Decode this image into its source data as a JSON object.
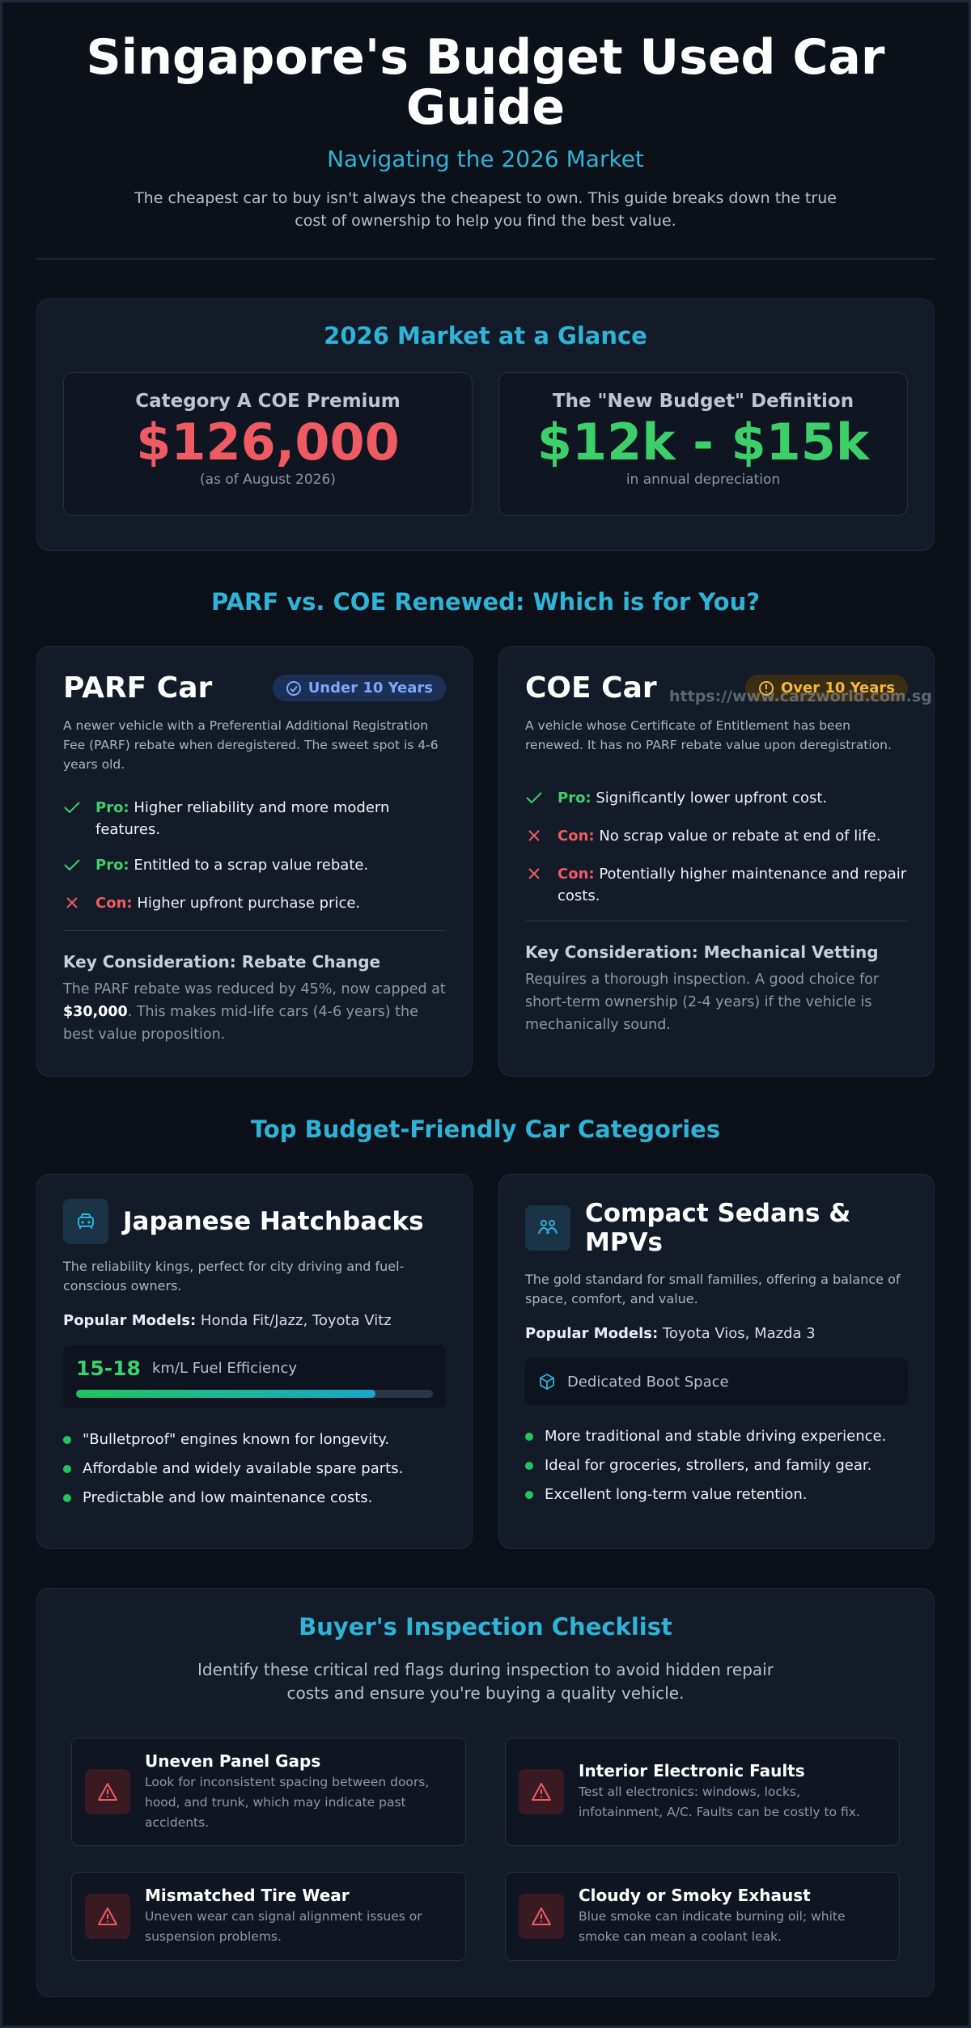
{
  "header": {
    "title": "Singapore's Budget Used Car Guide",
    "subtitle": "Navigating the 2026 Market",
    "intro": "The cheapest car to buy isn't always the cheapest to own. This guide breaks down the true cost of ownership to help you find the best value."
  },
  "glance": {
    "title": "2026 Market at a Glance",
    "cards": [
      {
        "label": "Category A COE Premium",
        "value": "$126,000",
        "note": "(as of August 2026)",
        "color": "#ef5b62"
      },
      {
        "label": "The \"New Budget\" Definition",
        "value": "$12k - $15k",
        "note": "in annual depreciation",
        "color": "#3ccf6a"
      }
    ]
  },
  "compare": {
    "title": "PARF vs. COE Renewed: Which is for You?",
    "parf": {
      "title": "PARF Car",
      "badge": "Under 10 Years",
      "desc": "A newer vehicle with a Preferential Additional Registration Fee (PARF) rebate when deregistered. The sweet spot is 4-6 years old.",
      "items": [
        {
          "type": "Pro:",
          "text": "Higher reliability and more modern features."
        },
        {
          "type": "Pro:",
          "text": "Entitled to a scrap value rebate."
        },
        {
          "type": "Con:",
          "text": "Higher upfront purchase price."
        }
      ],
      "kc_title": "Key Consideration: Rebate Change",
      "kc_before": "The PARF rebate was reduced by 45%, now capped at ",
      "kc_bold": "$30,000",
      "kc_after": ". This makes mid-life cars (4-6 years) the best value proposition."
    },
    "coe": {
      "title": "COE Car",
      "badge": "Over 10 Years",
      "watermark": "https://www.carzworld.com.sg",
      "desc": "A vehicle whose Certificate of Entitlement has been renewed. It has no PARF rebate value upon deregistration.",
      "items": [
        {
          "type": "Pro:",
          "text": "Significantly lower upfront cost."
        },
        {
          "type": "Con:",
          "text": "No scrap value or rebate at end of life."
        },
        {
          "type": "Con:",
          "text": "Potentially higher maintenance and repair costs."
        }
      ],
      "kc_title": "Key Consideration: Mechanical Vetting",
      "kc_text": "Requires a thorough inspection. A good choice for short-term ownership (2-4 years) if the vehicle is mechanically sound."
    }
  },
  "categories": {
    "title": "Top Budget-Friendly Car Categories",
    "hatch": {
      "icon": "car-front-icon",
      "title": "Japanese Hatchbacks",
      "desc": "The reliability kings, perfect for city driving and fuel-conscious owners.",
      "models_label": "Popular Models:",
      "models": "Honda Fit/Jazz, Toyota Vitz",
      "eff_value": "15-18",
      "eff_unit": "km/L Fuel Efficiency",
      "eff_level": 0.84,
      "bullets": [
        "\"Bulletproof\" engines known for longevity.",
        "Affordable and widely available spare parts.",
        "Predictable and low maintenance costs."
      ]
    },
    "sedan": {
      "icon": "family-icon",
      "title": "Compact Sedans & MPVs",
      "desc": "The gold standard for small families, offering a balance of space, comfort, and value.",
      "models_label": "Popular Models:",
      "models": "Toyota Vios, Mazda 3",
      "feature": "Dedicated Boot Space",
      "bullets": [
        "More traditional and stable driving experience.",
        "Ideal for groceries, strollers, and family gear.",
        "Excellent long-term value retention."
      ]
    }
  },
  "checklist": {
    "title": "Buyer's Inspection Checklist",
    "intro": "Identify these critical red flags during inspection to avoid hidden repair costs and ensure you're buying a quality vehicle.",
    "items": [
      {
        "title": "Uneven Panel Gaps",
        "text": "Look for inconsistent spacing between doors, hood, and trunk, which may indicate past accidents."
      },
      {
        "title": "Interior Electronic Faults",
        "text": "Test all electronics: windows, locks, infotainment, A/C. Faults can be costly to fix."
      },
      {
        "title": "Mismatched Tire Wear",
        "text": "Uneven wear can signal alignment issues or suspension problems."
      },
      {
        "title": "Cloudy or Smoky Exhaust",
        "text": "Blue smoke can indicate burning oil; white smoke can mean a coolant leak."
      }
    ]
  }
}
